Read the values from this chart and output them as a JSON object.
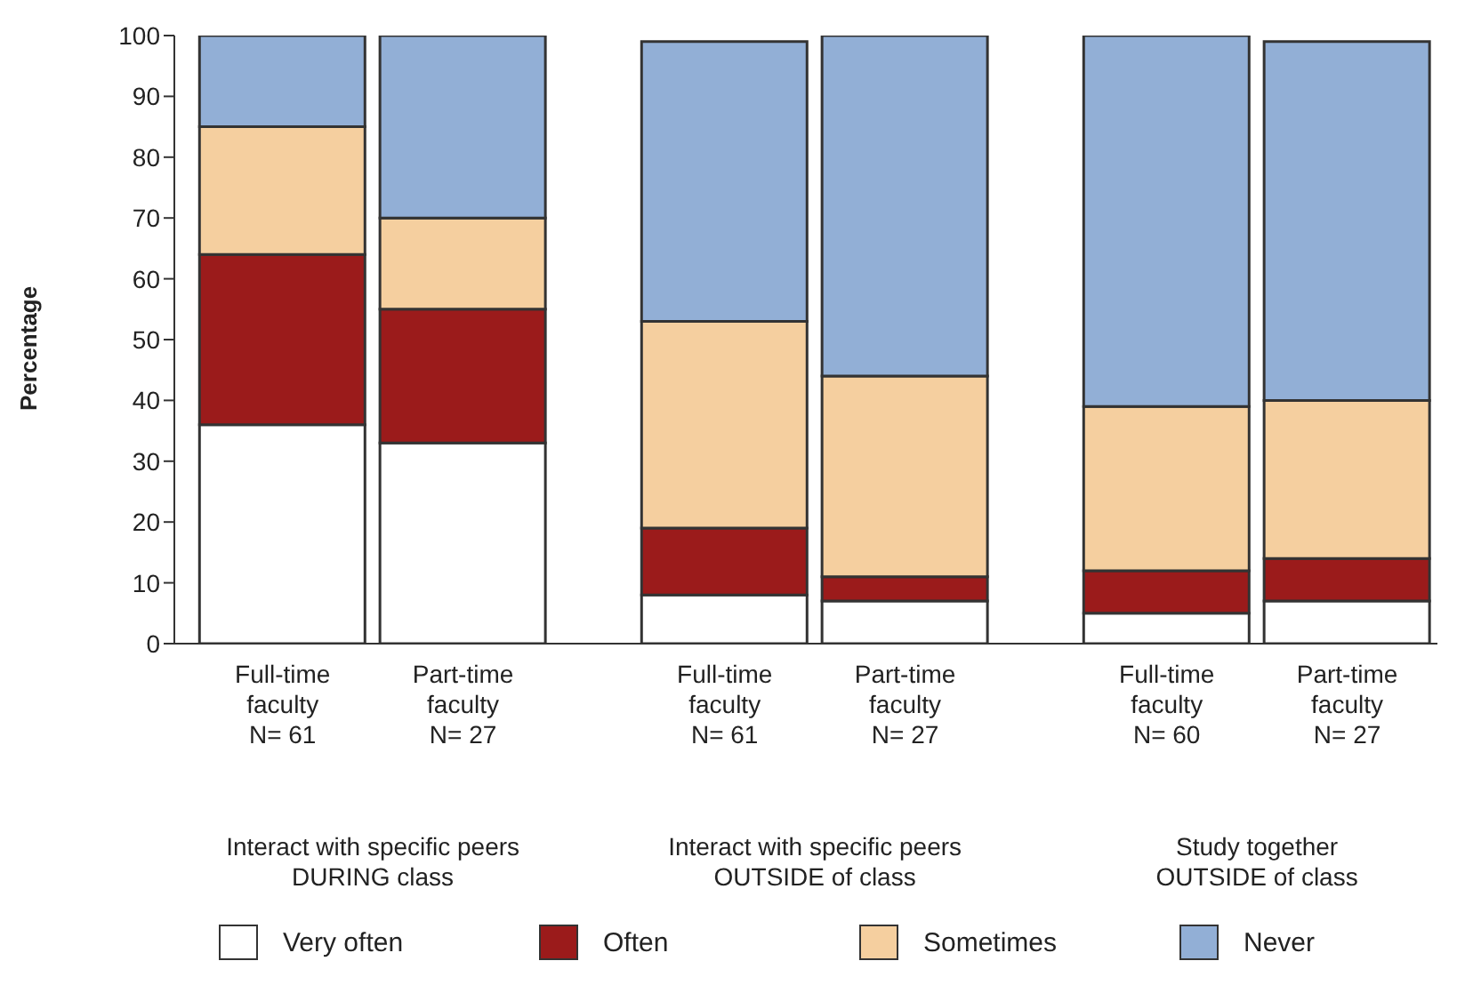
{
  "chart_data": {
    "type": "bar",
    "stacked": true,
    "ylabel": "Percentage",
    "categories": [
      "Full-time\nfaculty\nN= 61",
      "Part-time\nfaculty\nN= 27",
      "Full-time\nfaculty\nN= 61",
      "Part-time\nfaculty\nN= 27",
      "Full-time\nfaculty\nN= 60",
      "Part-time\nfaculty\nN= 27"
    ],
    "series": [
      {
        "name": "Very often",
        "color": "#ffffff",
        "values": [
          36,
          33,
          8,
          7,
          5,
          7
        ]
      },
      {
        "name": "Often",
        "color": "#9b1b1b",
        "values": [
          28,
          22,
          11,
          4,
          7,
          7
        ]
      },
      {
        "name": "Sometimes",
        "color": "#f5cf9f",
        "values": [
          21,
          15,
          34,
          33,
          27,
          26
        ]
      },
      {
        "name": "Never",
        "color": "#92afd6",
        "values": [
          15,
          30,
          46,
          56,
          61,
          59
        ]
      }
    ],
    "ylim": [
      0,
      100
    ],
    "yticks": [
      0,
      10,
      20,
      30,
      40,
      50,
      60,
      70,
      80,
      90,
      100
    ],
    "grid": false,
    "legend": "bottom",
    "annotations": [
      "Interact with specific peers\nDURING class",
      "Interact with specific peers\nOUTSIDE of class",
      "Study together\nOUTSIDE of class"
    ]
  }
}
